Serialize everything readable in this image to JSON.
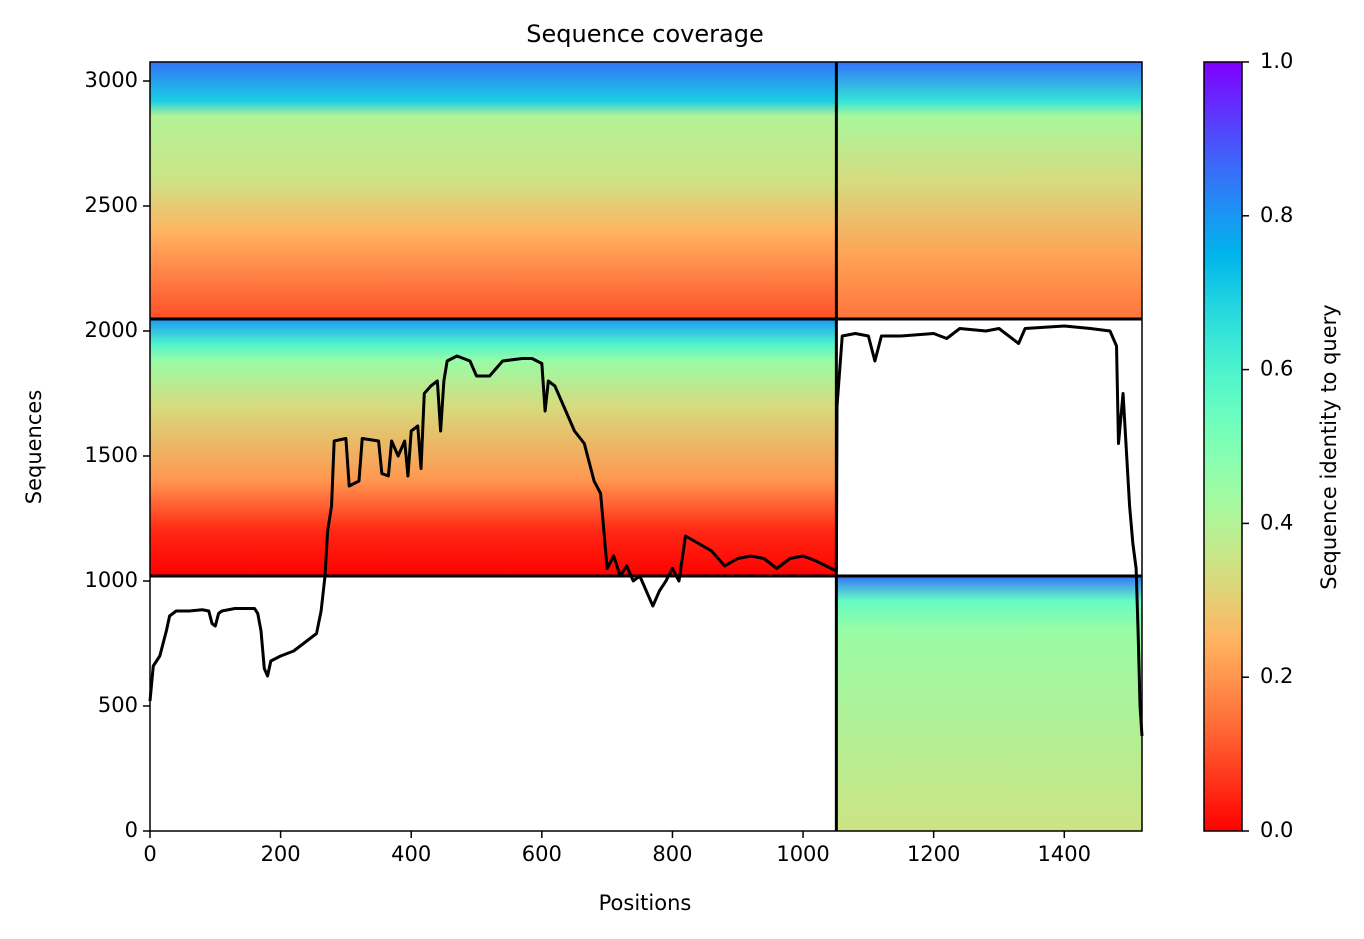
{
  "chart_data": {
    "type": "coverage",
    "title": "Sequence coverage",
    "x_label": "Positions",
    "y_label": "Sequences",
    "colorbar_label": "Sequence identity to query",
    "colormap": "rainbow_r",
    "xlim": [
      0,
      1519
    ],
    "ylim": [
      0,
      3076
    ],
    "xticks": [
      0,
      200,
      400,
      600,
      800,
      1000,
      1200,
      1400
    ],
    "yticks": [
      0,
      500,
      1000,
      1500,
      2000,
      2500,
      3000
    ],
    "clim": [
      0,
      1
    ],
    "cticks": [
      {
        "value": 0,
        "label": "0.0"
      },
      0.2,
      0.4,
      0.6,
      0.8,
      {
        "value": 1,
        "label": "1.0"
      }
    ],
    "chain_boundaries_x": [
      1051
    ],
    "block_boundaries_y": [
      1020,
      2048
    ],
    "blocks": [
      {
        "x": [
          0,
          1051
        ],
        "y": [
          2048,
          3076
        ],
        "profile_y": [
          3076,
          2920,
          2860,
          2600,
          2400,
          2048
        ],
        "identity": [
          0.85,
          0.7,
          0.4,
          0.35,
          0.25,
          0.1
        ]
      },
      {
        "x": [
          1051,
          1519
        ],
        "y": [
          2048,
          3076
        ],
        "profile_y": [
          3076,
          2920,
          2860,
          2600,
          2300,
          2048
        ],
        "identity": [
          0.85,
          0.65,
          0.42,
          0.33,
          0.22,
          0.15
        ]
      },
      {
        "x": [
          0,
          1051
        ],
        "y": [
          1020,
          2048
        ],
        "profile_y": [
          2048,
          1950,
          1880,
          1700,
          1400,
          1200,
          1020
        ],
        "identity": [
          0.8,
          0.6,
          0.45,
          0.33,
          0.2,
          0.05,
          0.0
        ]
      },
      {
        "x": [
          1051,
          1519
        ],
        "y": [
          0,
          1020
        ],
        "profile_y": [
          1020,
          920,
          800,
          0
        ],
        "identity": [
          0.85,
          0.55,
          0.45,
          0.35
        ]
      }
    ],
    "line_color": "#000000",
    "x": [
      0,
      5,
      15,
      25,
      30,
      40,
      60,
      80,
      90,
      95,
      100,
      105,
      110,
      130,
      160,
      165,
      170,
      175,
      180,
      185,
      200,
      220,
      240,
      255,
      262,
      268,
      272,
      278,
      282,
      300,
      305,
      320,
      325,
      350,
      355,
      365,
      370,
      380,
      390,
      395,
      400,
      410,
      415,
      420,
      430,
      440,
      445,
      450,
      455,
      470,
      490,
      500,
      520,
      540,
      570,
      585,
      600,
      605,
      610,
      620,
      630,
      650,
      665,
      675,
      680,
      690,
      695,
      700,
      710,
      720,
      730,
      740,
      750,
      760,
      770,
      780,
      790,
      800,
      810,
      820,
      840,
      860,
      880,
      900,
      920,
      940,
      960,
      980,
      1000,
      1020,
      1051,
      1052,
      1060,
      1080,
      1100,
      1110,
      1120,
      1150,
      1200,
      1220,
      1240,
      1280,
      1300,
      1330,
      1340,
      1400,
      1440,
      1470,
      1480,
      1483,
      1490,
      1500,
      1505,
      1510,
      1513,
      1516,
      1519
    ],
    "values": [
      520,
      660,
      700,
      800,
      860,
      880,
      880,
      885,
      880,
      830,
      820,
      870,
      880,
      890,
      890,
      870,
      800,
      650,
      620,
      680,
      700,
      720,
      760,
      790,
      880,
      1020,
      1200,
      1300,
      1560,
      1570,
      1380,
      1400,
      1570,
      1560,
      1430,
      1420,
      1560,
      1500,
      1560,
      1420,
      1600,
      1620,
      1450,
      1750,
      1780,
      1800,
      1600,
      1800,
      1880,
      1900,
      1880,
      1820,
      1820,
      1880,
      1890,
      1890,
      1870,
      1680,
      1800,
      1780,
      1720,
      1600,
      1550,
      1450,
      1400,
      1350,
      1200,
      1050,
      1100,
      1020,
      1060,
      1000,
      1020,
      960,
      900,
      960,
      1000,
      1050,
      1000,
      1180,
      1150,
      1120,
      1060,
      1090,
      1100,
      1090,
      1050,
      1090,
      1100,
      1080,
      1040,
      1700,
      1980,
      1990,
      1980,
      1880,
      1980,
      1980,
      1990,
      1970,
      2010,
      2000,
      2010,
      1950,
      2010,
      2020,
      2010,
      2000,
      1940,
      1550,
      1750,
      1300,
      1150,
      1050,
      800,
      500,
      380
    ]
  }
}
